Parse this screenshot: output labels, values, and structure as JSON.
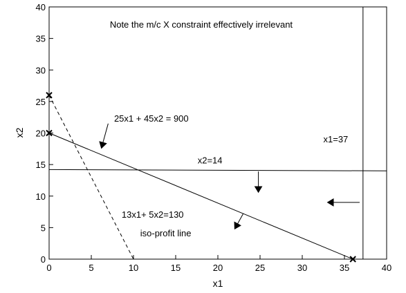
{
  "chart_data": {
    "type": "line",
    "title": "",
    "xlabel": "x1",
    "ylabel": "x2",
    "xlim": [
      0,
      40
    ],
    "ylim": [
      0,
      40
    ],
    "xticks": [
      0,
      5,
      10,
      15,
      20,
      25,
      30,
      35,
      40
    ],
    "yticks": [
      0,
      5,
      10,
      15,
      20,
      25,
      30,
      35,
      40
    ],
    "grid": false,
    "series": [
      {
        "label": "25x1 + 45x2 = 900",
        "style": "solid",
        "x": [
          0,
          36
        ],
        "y": [
          20,
          0
        ]
      },
      {
        "label": "x2=14",
        "style": "solid",
        "x": [
          0,
          40
        ],
        "y": [
          14.2,
          14
        ]
      },
      {
        "label": "x1=37",
        "style": "solid",
        "x": [
          37.2,
          37.2
        ],
        "y": [
          0,
          40
        ]
      },
      {
        "label": "13x1+ 5x2=130",
        "style": "dashed",
        "x": [
          0,
          10
        ],
        "y": [
          26,
          0
        ]
      }
    ],
    "markers": [
      {
        "symbol": "x",
        "x": 0,
        "y": 26
      },
      {
        "symbol": "x",
        "x": 0,
        "y": 20
      },
      {
        "symbol": "x",
        "x": 36,
        "y": 0
      }
    ],
    "annotations": [
      {
        "key": "note",
        "text": "Note the m/c X constraint effectively irrelevant",
        "x": 7.2,
        "y": 36.7
      },
      {
        "key": "c1",
        "text": "25x1 + 45x2 = 900",
        "x": 7.7,
        "y": 21.8
      },
      {
        "key": "c2",
        "text": "x2=14",
        "x": 17.6,
        "y": 15.2
      },
      {
        "key": "c3",
        "text": "x1=37",
        "x": 32.5,
        "y": 18.5
      },
      {
        "key": "c4",
        "text": "13x1+ 5x2=130",
        "x": 8.6,
        "y": 6.6
      },
      {
        "key": "c5",
        "text": "iso-profit line",
        "x": 10.8,
        "y": 3.6
      }
    ],
    "arrows": [
      {
        "x1": 7.0,
        "y1": 21.5,
        "x2": 6.2,
        "y2": 17.6
      },
      {
        "x1": 24.8,
        "y1": 13.9,
        "x2": 24.8,
        "y2": 10.6
      },
      {
        "x1": 36.8,
        "y1": 9.0,
        "x2": 33.0,
        "y2": 9.0
      },
      {
        "x1": 23.0,
        "y1": 7.2,
        "x2": 22.0,
        "y2": 4.8
      }
    ]
  }
}
